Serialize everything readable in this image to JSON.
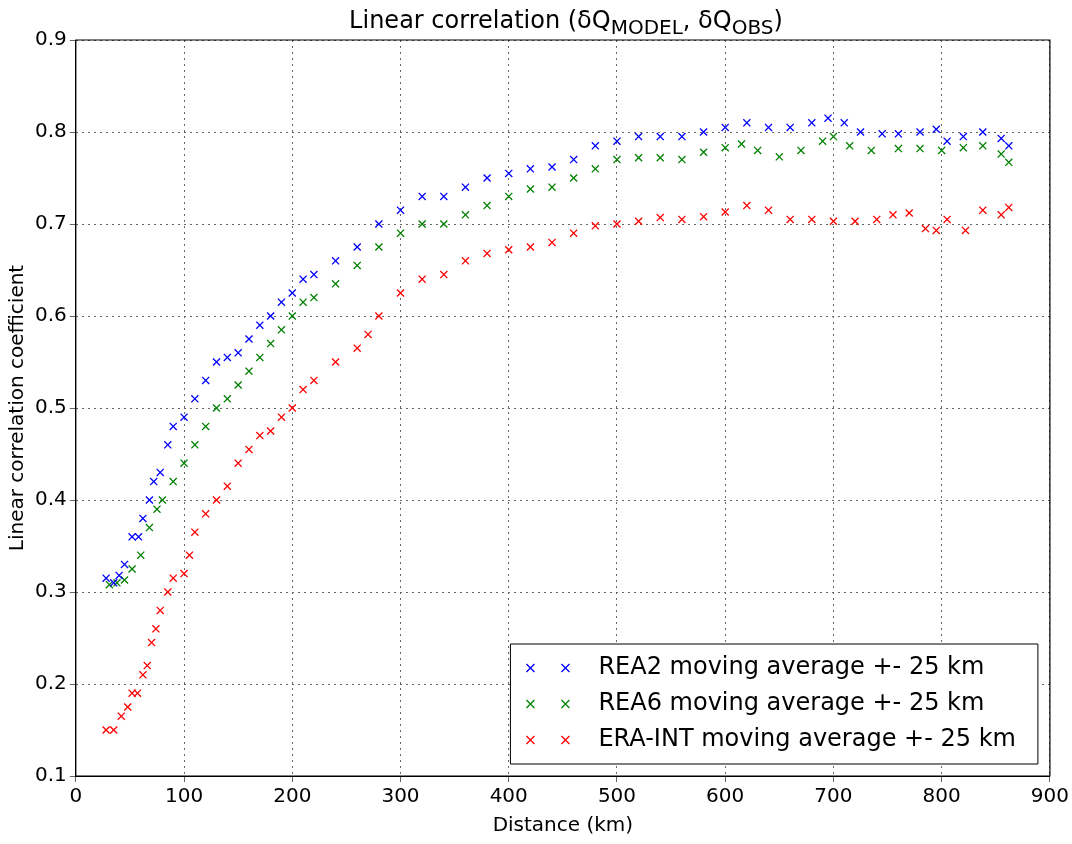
{
  "chart_data": {
    "type": "scatter",
    "title": "Linear correlation (δQ$_{MODEL}$, δQ$_{OBS}$)",
    "xlabel": "Distance (km)",
    "ylabel": "Linear correlation coefficient",
    "xlim": [
      0,
      900
    ],
    "xticks": [
      0,
      100,
      200,
      300,
      400,
      500,
      600,
      700,
      800,
      900
    ],
    "ylim": [
      0.1,
      0.9
    ],
    "yticks": [
      0.1,
      0.2,
      0.3,
      0.4,
      0.5,
      0.6,
      0.7,
      0.8,
      0.9
    ],
    "grid": true,
    "legend": "bottom right",
    "marker": "cross",
    "series": [
      {
        "name": "REA2 moving average +- 25 km",
        "color": "#0000ff",
        "x": [
          28,
          35,
          40,
          45,
          52,
          58,
          62,
          68,
          72,
          78,
          85,
          90,
          100,
          110,
          120,
          130,
          140,
          150,
          160,
          170,
          180,
          190,
          200,
          210,
          220,
          240,
          260,
          280,
          300,
          320,
          340,
          360,
          380,
          400,
          420,
          440,
          460,
          480,
          500,
          520,
          540,
          560,
          580,
          600,
          620,
          640,
          660,
          680,
          695,
          710,
          725,
          745,
          760,
          780,
          795,
          805,
          820,
          838,
          855,
          862
        ],
        "values": [
          0.315,
          0.31,
          0.318,
          0.33,
          0.36,
          0.36,
          0.38,
          0.4,
          0.42,
          0.43,
          0.46,
          0.48,
          0.49,
          0.51,
          0.53,
          0.55,
          0.555,
          0.56,
          0.575,
          0.59,
          0.6,
          0.615,
          0.625,
          0.64,
          0.645,
          0.66,
          0.675,
          0.7,
          0.715,
          0.73,
          0.73,
          0.74,
          0.75,
          0.755,
          0.76,
          0.762,
          0.77,
          0.785,
          0.79,
          0.795,
          0.795,
          0.795,
          0.8,
          0.805,
          0.81,
          0.805,
          0.805,
          0.81,
          0.815,
          0.81,
          0.8,
          0.798,
          0.798,
          0.8,
          0.803,
          0.79,
          0.795,
          0.8,
          0.793,
          0.785
        ]
      },
      {
        "name": "REA6 moving average +- 25 km",
        "color": "#008000",
        "x": [
          31,
          38,
          45,
          52,
          60,
          68,
          75,
          80,
          90,
          100,
          110,
          120,
          130,
          140,
          150,
          160,
          170,
          180,
          190,
          200,
          210,
          220,
          240,
          260,
          280,
          300,
          320,
          340,
          360,
          380,
          400,
          420,
          440,
          460,
          480,
          500,
          520,
          540,
          560,
          580,
          600,
          615,
          630,
          650,
          670,
          690,
          700,
          715,
          735,
          760,
          780,
          800,
          820,
          838,
          855,
          862
        ],
        "values": [
          0.308,
          0.31,
          0.313,
          0.325,
          0.34,
          0.37,
          0.39,
          0.4,
          0.42,
          0.44,
          0.46,
          0.48,
          0.5,
          0.51,
          0.525,
          0.54,
          0.555,
          0.57,
          0.585,
          0.6,
          0.615,
          0.62,
          0.635,
          0.655,
          0.675,
          0.69,
          0.7,
          0.7,
          0.71,
          0.72,
          0.73,
          0.738,
          0.74,
          0.75,
          0.76,
          0.77,
          0.772,
          0.772,
          0.77,
          0.778,
          0.783,
          0.787,
          0.78,
          0.773,
          0.78,
          0.79,
          0.795,
          0.785,
          0.78,
          0.782,
          0.782,
          0.78,
          0.783,
          0.785,
          0.776,
          0.767
        ]
      },
      {
        "name": "ERA-INT moving average +- 25 km",
        "color": "#ff0000",
        "x": [
          28,
          35,
          42,
          48,
          52,
          57,
          62,
          66,
          70,
          74,
          78,
          85,
          90,
          100,
          105,
          110,
          120,
          130,
          140,
          150,
          160,
          170,
          180,
          190,
          200,
          210,
          220,
          240,
          260,
          270,
          280,
          300,
          320,
          340,
          360,
          380,
          400,
          420,
          440,
          460,
          480,
          500,
          520,
          540,
          560,
          580,
          600,
          620,
          640,
          660,
          680,
          700,
          720,
          740,
          755,
          770,
          785,
          795,
          805,
          822,
          838,
          855,
          862
        ],
        "values": [
          0.15,
          0.15,
          0.165,
          0.175,
          0.19,
          0.19,
          0.21,
          0.22,
          0.245,
          0.26,
          0.28,
          0.3,
          0.315,
          0.32,
          0.34,
          0.365,
          0.385,
          0.4,
          0.415,
          0.44,
          0.455,
          0.47,
          0.475,
          0.49,
          0.5,
          0.52,
          0.53,
          0.55,
          0.565,
          0.58,
          0.6,
          0.625,
          0.64,
          0.645,
          0.66,
          0.668,
          0.672,
          0.675,
          0.68,
          0.69,
          0.698,
          0.7,
          0.703,
          0.707,
          0.705,
          0.708,
          0.713,
          0.72,
          0.715,
          0.705,
          0.705,
          0.703,
          0.703,
          0.705,
          0.71,
          0.712,
          0.695,
          0.693,
          0.705,
          0.693,
          0.715,
          0.71,
          0.718
        ]
      }
    ]
  }
}
